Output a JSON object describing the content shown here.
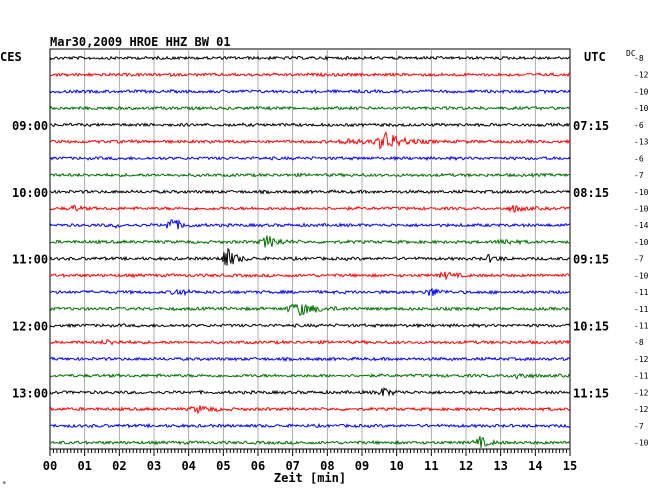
{
  "chart_data": {
    "type": "line",
    "title": "Mar30,2009   HROE HHZ BW 01",
    "xlabel": "Zeit [min]",
    "xlim": [
      0,
      15
    ],
    "x_ticks": [
      "00",
      "01",
      "02",
      "03",
      "04",
      "05",
      "06",
      "07",
      "08",
      "09",
      "10",
      "11",
      "12",
      "13",
      "14",
      "15"
    ],
    "left_timezone": "CES",
    "right_timezone": "UTC",
    "dc_label": "DC",
    "left_hour_labels": [
      {
        "trace": 4,
        "label": "09:00"
      },
      {
        "trace": 8,
        "label": "10:00"
      },
      {
        "trace": 12,
        "label": "11:00"
      },
      {
        "trace": 16,
        "label": "12:00"
      },
      {
        "trace": 20,
        "label": "13:00"
      }
    ],
    "right_hour_labels": [
      {
        "trace": 4,
        "label": "07:15"
      },
      {
        "trace": 8,
        "label": "08:15"
      },
      {
        "trace": 12,
        "label": "09:15"
      },
      {
        "trace": 16,
        "label": "10:15"
      },
      {
        "trace": 20,
        "label": "11:15"
      }
    ],
    "trace_colors": [
      "#000000",
      "#ff0000",
      "#0000ff",
      "#007000"
    ],
    "dc_offsets": [
      "-8",
      "-12",
      "-10",
      "-10",
      "-6",
      "-13",
      "-6",
      "-7",
      "-10",
      "-10",
      "-14",
      "-10",
      "-7",
      "-10",
      "-11",
      "-11",
      "-11",
      "-8",
      "-12",
      "-11",
      "-12",
      "-12",
      "-7",
      "-10"
    ],
    "events": [
      {
        "trace": 5,
        "x_min": 9.7,
        "amplitude": 9,
        "width_min": 0.9
      },
      {
        "trace": 5,
        "x_min": 8.6,
        "amplitude": 3,
        "width_min": 0.7
      },
      {
        "trace": 9,
        "x_min": 0.7,
        "amplitude": 3,
        "width_min": 0.3
      },
      {
        "trace": 9,
        "x_min": 13.4,
        "amplitude": 3,
        "width_min": 0.5
      },
      {
        "trace": 10,
        "x_min": 3.5,
        "amplitude": 7,
        "width_min": 0.5
      },
      {
        "trace": 10,
        "x_min": 1.9,
        "amplitude": 2,
        "width_min": 0.2
      },
      {
        "trace": 11,
        "x_min": 6.3,
        "amplitude": 6,
        "width_min": 0.6
      },
      {
        "trace": 11,
        "x_min": 13.1,
        "amplitude": 3,
        "width_min": 0.5
      },
      {
        "trace": 12,
        "x_min": 5.1,
        "amplitude": 11,
        "width_min": 0.5
      },
      {
        "trace": 12,
        "x_min": 12.7,
        "amplitude": 3,
        "width_min": 0.5
      },
      {
        "trace": 13,
        "x_min": 11.4,
        "amplitude": 3,
        "width_min": 0.5
      },
      {
        "trace": 14,
        "x_min": 3.7,
        "amplitude": 3,
        "width_min": 0.5
      },
      {
        "trace": 14,
        "x_min": 11.0,
        "amplitude": 4,
        "width_min": 0.5
      },
      {
        "trace": 15,
        "x_min": 7.2,
        "amplitude": 6,
        "width_min": 1.0
      },
      {
        "trace": 17,
        "x_min": 1.7,
        "amplitude": 2,
        "width_min": 0.6
      },
      {
        "trace": 19,
        "x_min": 13.5,
        "amplitude": 3,
        "width_min": 0.5
      },
      {
        "trace": 20,
        "x_min": 9.6,
        "amplitude": 4,
        "width_min": 0.5
      },
      {
        "trace": 21,
        "x_min": 4.3,
        "amplitude": 3,
        "width_min": 0.7
      },
      {
        "trace": 23,
        "x_min": 12.4,
        "amplitude": 5,
        "width_min": 0.5
      }
    ]
  }
}
